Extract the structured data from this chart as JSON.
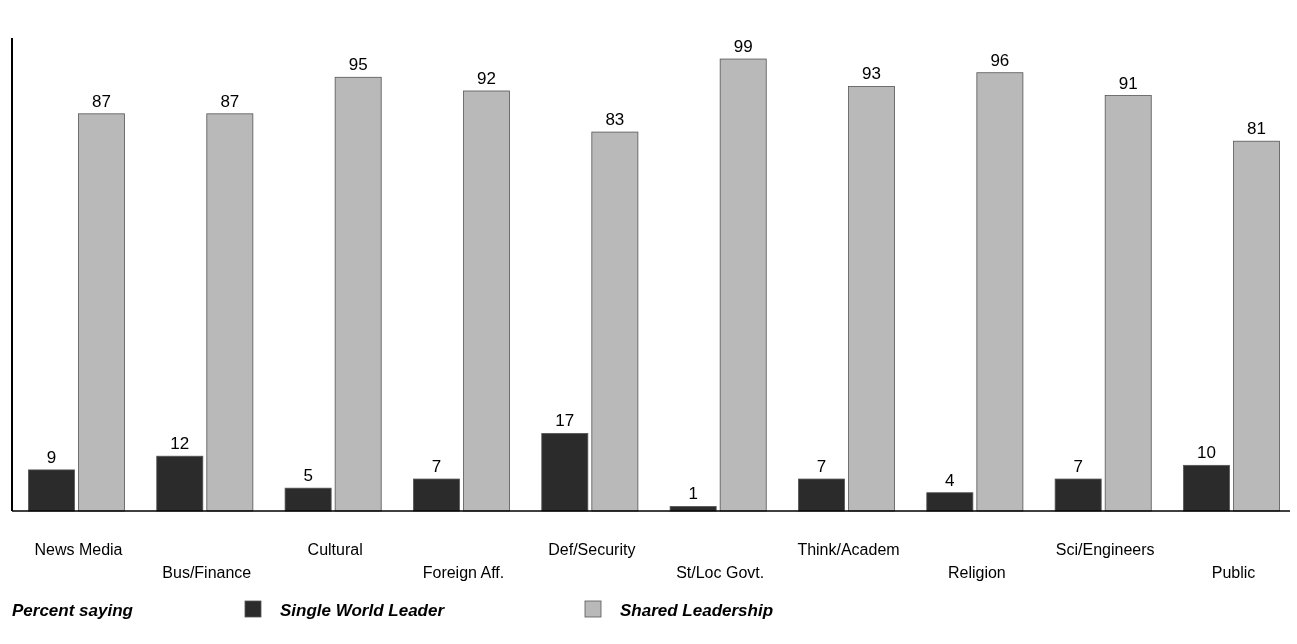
{
  "chart_data": {
    "type": "bar",
    "categories": [
      "News Media",
      "Bus/Finance",
      "Cultural",
      "Foreign Aff.",
      "Def/Security",
      "St/Loc Govt.",
      "Think/Academ",
      "Religion",
      "Sci/Engineers",
      "Public"
    ],
    "series": [
      {
        "name": "Single World Leader",
        "color": "#2b2b2b",
        "values": [
          9,
          12,
          5,
          7,
          17,
          1,
          7,
          4,
          7,
          10
        ]
      },
      {
        "name": "Shared Leadership",
        "color": "#b9b9b9",
        "values": [
          87,
          87,
          95,
          92,
          83,
          99,
          93,
          96,
          91,
          81
        ]
      }
    ],
    "data_labels": true,
    "legend": "bottom left",
    "legend_title": "Percent saying"
  }
}
